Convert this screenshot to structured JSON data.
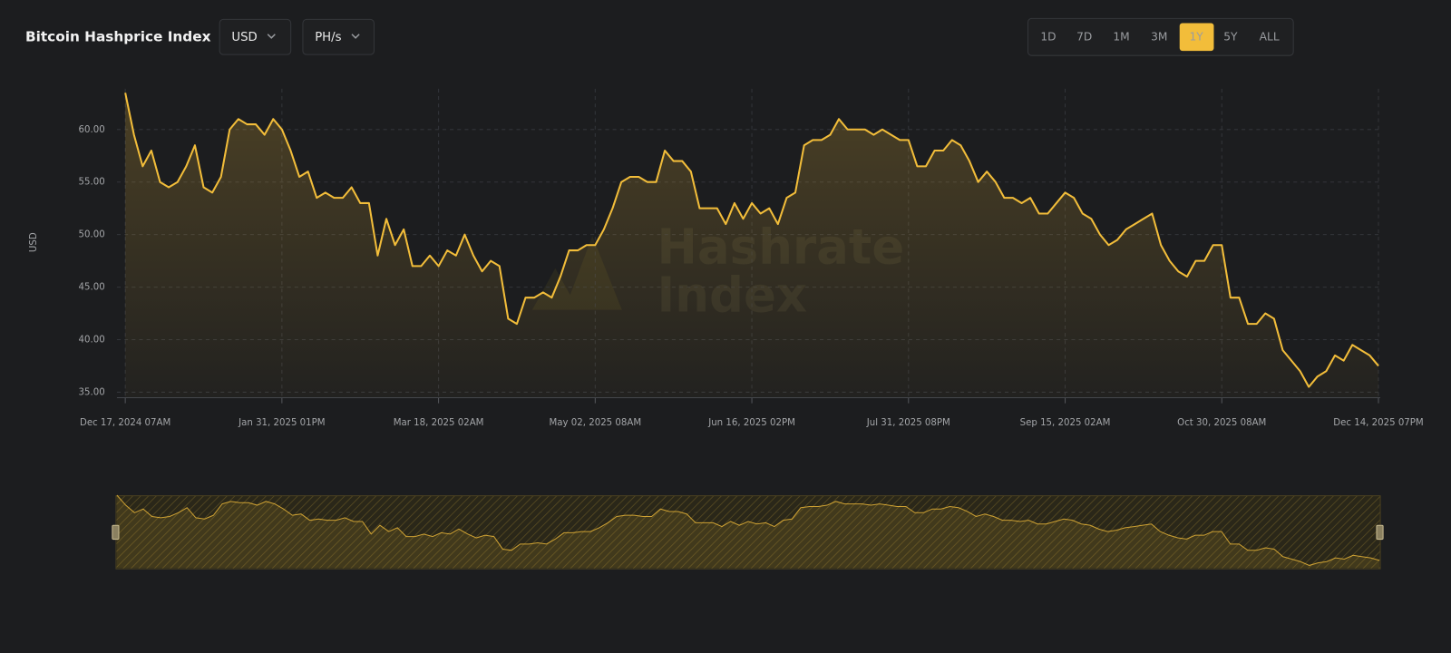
{
  "header": {
    "title": "Bitcoin Hashprice Index",
    "currency": "USD",
    "unit": "PH/s",
    "ranges": [
      {
        "label": "1D",
        "active": false
      },
      {
        "label": "7D",
        "active": false
      },
      {
        "label": "1M",
        "active": false
      },
      {
        "label": "3M",
        "active": false
      },
      {
        "label": "1Y",
        "active": true
      },
      {
        "label": "5Y",
        "active": false
      },
      {
        "label": "ALL",
        "active": false
      }
    ]
  },
  "chart_data": {
    "type": "line",
    "y_label": "USD",
    "watermark": [
      "Hashrate",
      "Index"
    ],
    "color": "#f2bd3a",
    "grid": true,
    "navigator": true,
    "xlim": [
      0,
      144
    ],
    "xticks": [
      {
        "value": 0,
        "label": "Dec 17, 2024 07AM"
      },
      {
        "value": 18,
        "label": "Jan 31, 2025 01PM"
      },
      {
        "value": 36,
        "label": "Mar 18, 2025 02AM"
      },
      {
        "value": 54,
        "label": "May 02, 2025 08AM"
      },
      {
        "value": 72,
        "label": "Jun 16, 2025 02PM"
      },
      {
        "value": 90,
        "label": "Jul 31, 2025 08PM"
      },
      {
        "value": 108,
        "label": "Sep 15, 2025 02AM"
      },
      {
        "value": 126,
        "label": "Oct 30, 2025 08AM"
      },
      {
        "value": 144,
        "label": "Dec 14, 2025 07PM"
      }
    ],
    "ylim": [
      34.5,
      64
    ],
    "yticks": [
      {
        "value": 35,
        "label": "35.00"
      },
      {
        "value": 40,
        "label": "40.00"
      },
      {
        "value": 45,
        "label": "45.00"
      },
      {
        "value": 50,
        "label": "50.00"
      },
      {
        "value": 55,
        "label": "55.00"
      },
      {
        "value": 60,
        "label": "60.00"
      }
    ],
    "values": [
      63.5,
      59.5,
      56.5,
      58,
      55,
      54.5,
      55,
      56.5,
      58.5,
      54.5,
      54,
      55.5,
      60,
      61,
      60.5,
      60.5,
      59.5,
      61,
      60,
      58,
      55.5,
      56,
      53.5,
      54,
      53.5,
      53.5,
      54.5,
      53,
      53,
      48,
      51.5,
      49,
      50.5,
      47,
      47,
      48,
      47,
      48.5,
      48,
      50,
      48,
      46.5,
      47.5,
      47,
      42,
      41.5,
      44,
      44,
      44.5,
      44,
      46,
      48.5,
      48.5,
      49,
      49,
      50.5,
      52.5,
      55,
      55.5,
      55.5,
      55,
      55,
      58,
      57,
      57,
      56,
      52.5,
      52.5,
      52.5,
      51,
      53,
      51.5,
      53,
      52,
      52.5,
      51,
      53.5,
      54,
      58.5,
      59,
      59,
      59.5,
      61,
      60,
      60,
      60,
      59.5,
      60,
      59.5,
      59,
      59,
      56.5,
      56.5,
      58,
      58,
      59,
      58.5,
      57,
      55,
      56,
      55,
      53.5,
      53.5,
      53,
      53.5,
      52,
      52,
      53,
      54,
      53.5,
      52,
      51.5,
      50,
      49,
      49.5,
      50.5,
      51,
      51.5,
      52,
      49,
      47.5,
      46.5,
      46,
      47.5,
      47.5,
      49,
      49,
      44,
      44,
      41.5,
      41.5,
      42.5,
      42,
      39,
      38,
      37,
      35.5,
      36.5,
      37,
      38.5,
      38,
      39.5,
      39,
      38.5,
      37.5
    ]
  }
}
